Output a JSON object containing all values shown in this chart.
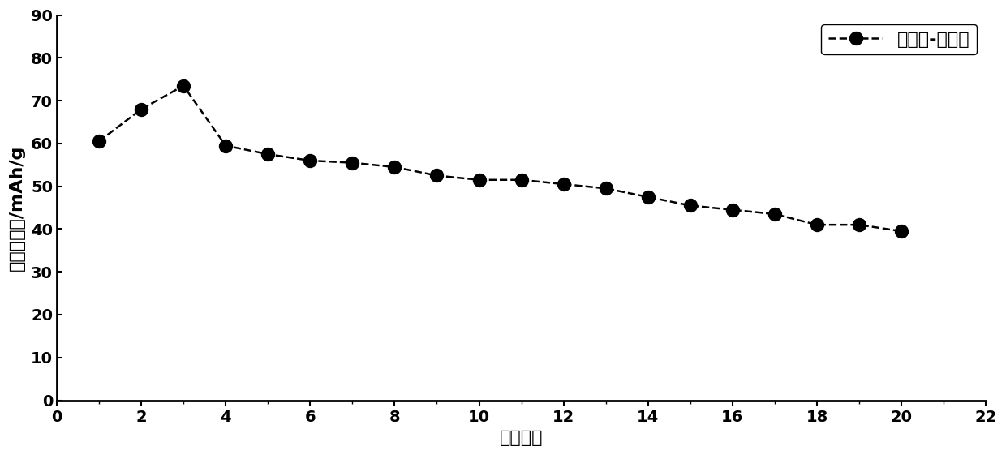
{
  "x": [
    1,
    2,
    3,
    4,
    5,
    6,
    7,
    8,
    9,
    10,
    11,
    12,
    13,
    14,
    15,
    16,
    17,
    18,
    19,
    20
  ],
  "y": [
    60.5,
    68,
    73.5,
    59.5,
    57.5,
    56,
    55.5,
    54.5,
    52.5,
    51.5,
    51.5,
    50.5,
    49.5,
    47.5,
    45.5,
    44.5,
    43.5,
    41,
    41,
    39.5
  ],
  "xlabel": "循环次数",
  "ylabel": "放电比容量/mAh/g",
  "legend_label": "锤酸钓-氧化锤",
  "xlim": [
    0,
    22
  ],
  "ylim": [
    0,
    90
  ],
  "xticks": [
    0,
    2,
    4,
    6,
    8,
    10,
    12,
    14,
    16,
    18,
    20,
    22
  ],
  "yticks": [
    0,
    10,
    20,
    30,
    40,
    50,
    60,
    70,
    80,
    90
  ],
  "line_color": "#000000",
  "marker_color": "#000000",
  "background_color": "#ffffff",
  "linewidth": 1.8,
  "markersize": 11,
  "label_fontsize": 16,
  "tick_fontsize": 14,
  "legend_fontsize": 16,
  "font_weight": "bold"
}
